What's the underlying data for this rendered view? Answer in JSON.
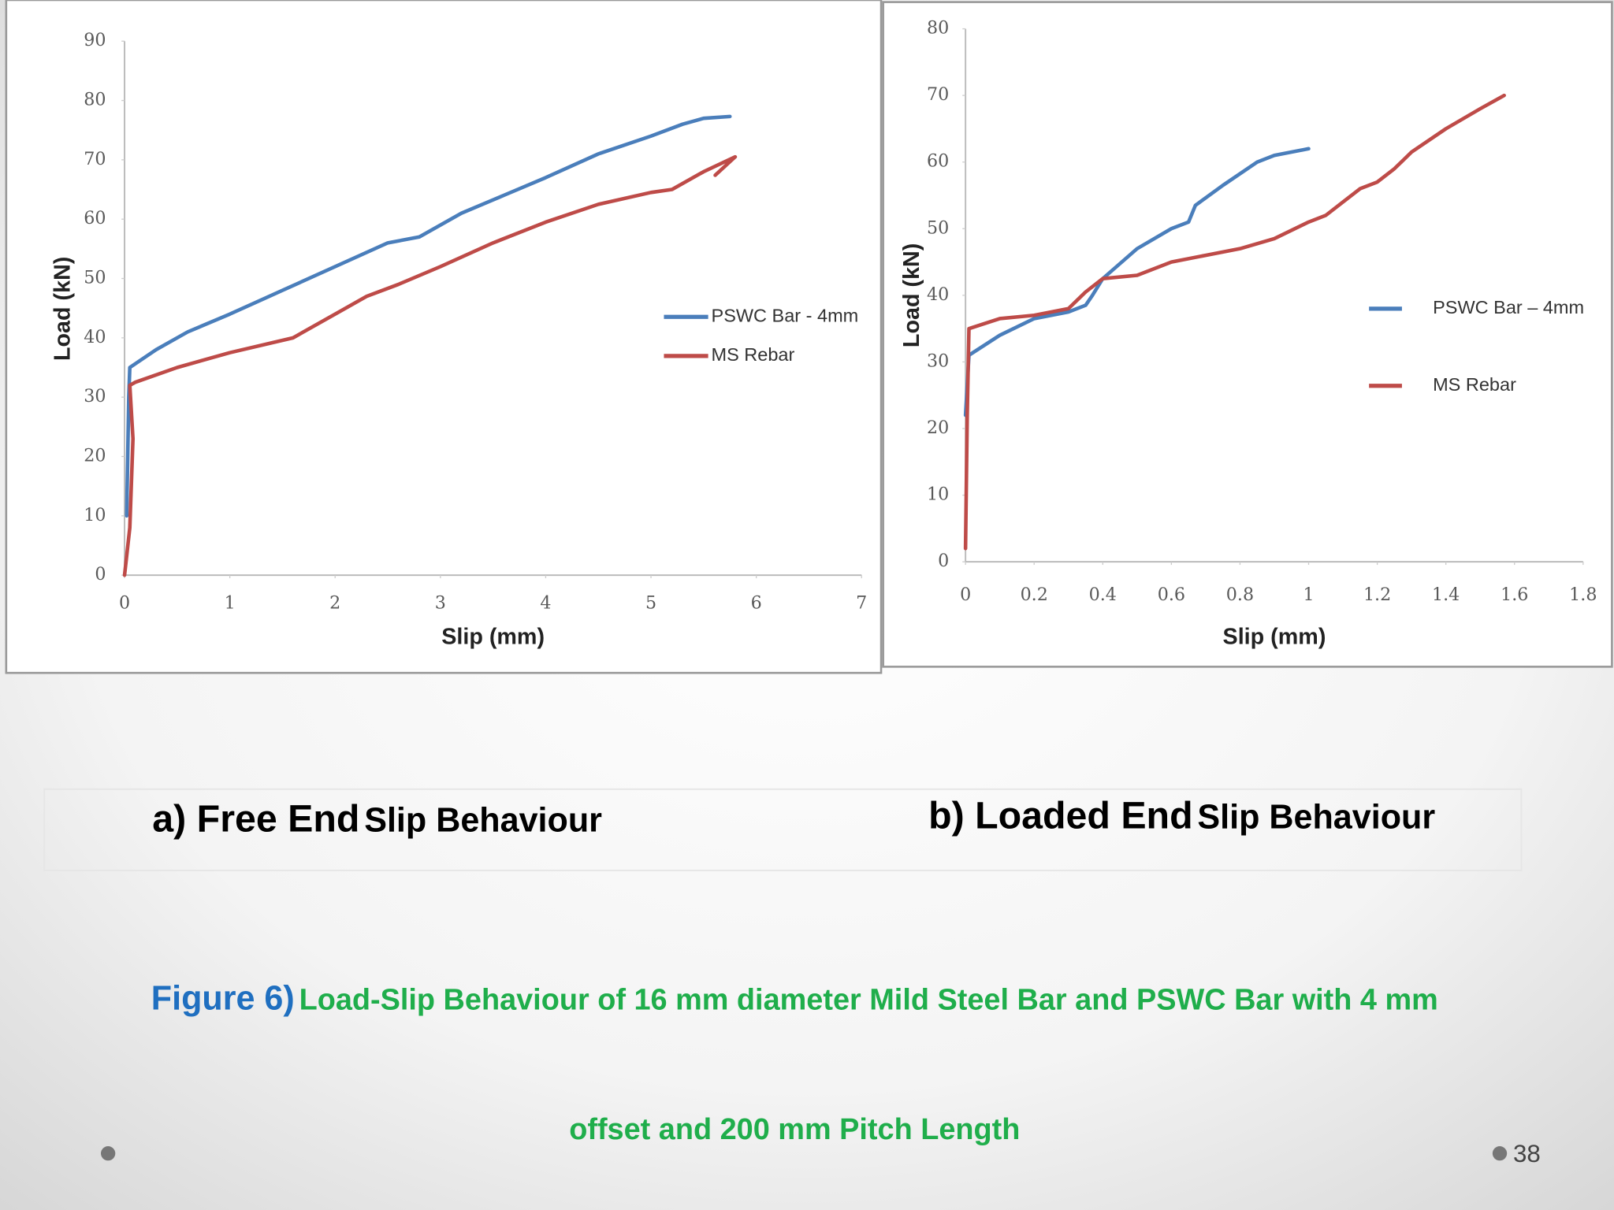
{
  "chart_data": [
    {
      "type": "line",
      "ylabel": "Load (kN)",
      "xlabel": "Slip (mm)",
      "xlim": [
        0,
        7
      ],
      "xticks": [
        0,
        1,
        2,
        3,
        4,
        5,
        6,
        7
      ],
      "ylim": [
        0,
        90
      ],
      "yticks": [
        0,
        10,
        20,
        30,
        40,
        50,
        60,
        70,
        80,
        90
      ],
      "grid": false,
      "legend": "right",
      "series": [
        {
          "name": "PSWC Bar - 4mm",
          "color": "#4a7ebb",
          "x": [
            0.02,
            0.03,
            0.04,
            0.05,
            0.3,
            0.6,
            1.0,
            1.5,
            2.0,
            2.5,
            2.8,
            3.2,
            3.6,
            4.0,
            4.5,
            5.0,
            5.3,
            5.5,
            5.75
          ],
          "values": [
            10,
            20,
            30,
            35,
            38,
            41,
            44,
            48,
            52,
            56,
            57,
            61,
            64,
            67,
            71,
            74,
            76,
            77,
            77.3
          ]
        },
        {
          "name": "MS Rebar",
          "color": "#be4b48",
          "x": [
            0,
            0.05,
            0.08,
            0.05,
            0.1,
            0.5,
            1.0,
            1.6,
            2.0,
            2.3,
            2.6,
            3.0,
            3.5,
            4.0,
            4.5,
            5.0,
            5.2,
            5.5,
            5.8,
            5.61
          ],
          "values": [
            0,
            8,
            23,
            32,
            32.5,
            35,
            37.5,
            40,
            44,
            47,
            49,
            52,
            56,
            59.5,
            62.5,
            64.5,
            65,
            68,
            70.5,
            67.4
          ]
        }
      ]
    },
    {
      "type": "line",
      "ylabel": "Load (kN)",
      "xlabel": "Slip (mm)",
      "xlim": [
        0,
        1.8
      ],
      "xticks": [
        0,
        0.2,
        0.4,
        0.6,
        0.8,
        1,
        1.2,
        1.4,
        1.6,
        1.8
      ],
      "ylim": [
        0,
        80
      ],
      "yticks": [
        0,
        10,
        20,
        30,
        40,
        50,
        60,
        70,
        80
      ],
      "grid": false,
      "legend": "right",
      "series": [
        {
          "name": "PSWC Bar – 4mm",
          "color": "#4a7ebb",
          "x": [
            0,
            0.01,
            0.1,
            0.2,
            0.3,
            0.35,
            0.37,
            0.4,
            0.5,
            0.6,
            0.65,
            0.67,
            0.75,
            0.85,
            0.9,
            1.0
          ],
          "values": [
            22,
            31,
            34,
            36.5,
            37.5,
            38.5,
            40,
            42.5,
            47,
            50,
            51,
            53.5,
            56.5,
            60,
            61,
            62
          ]
        },
        {
          "name": "MS Rebar",
          "color": "#be4b48",
          "x": [
            0,
            0.005,
            0.01,
            0.1,
            0.2,
            0.3,
            0.35,
            0.4,
            0.5,
            0.6,
            0.7,
            0.8,
            0.9,
            1.0,
            1.05,
            1.1,
            1.15,
            1.2,
            1.25,
            1.3,
            1.4,
            1.5,
            1.57
          ],
          "values": [
            2,
            22,
            35,
            36.5,
            37,
            38,
            40.5,
            42.5,
            43,
            45,
            46,
            47,
            48.5,
            51,
            52,
            54,
            56,
            57,
            59,
            61.5,
            65,
            68,
            70
          ]
        }
      ]
    }
  ],
  "captions": [
    {
      "main": "a) Free End",
      "rest": "Slip Behaviour"
    },
    {
      "main": "b) Loaded End",
      "rest": "Slip Behaviour"
    }
  ],
  "figure_caption": {
    "label": "Figure 6)",
    "line1": "Load-Slip Behaviour of 16 mm diameter Mild Steel Bar and PSWC Bar with 4 mm",
    "line2": "offset and 200 mm Pitch Length"
  },
  "page_number": "38"
}
